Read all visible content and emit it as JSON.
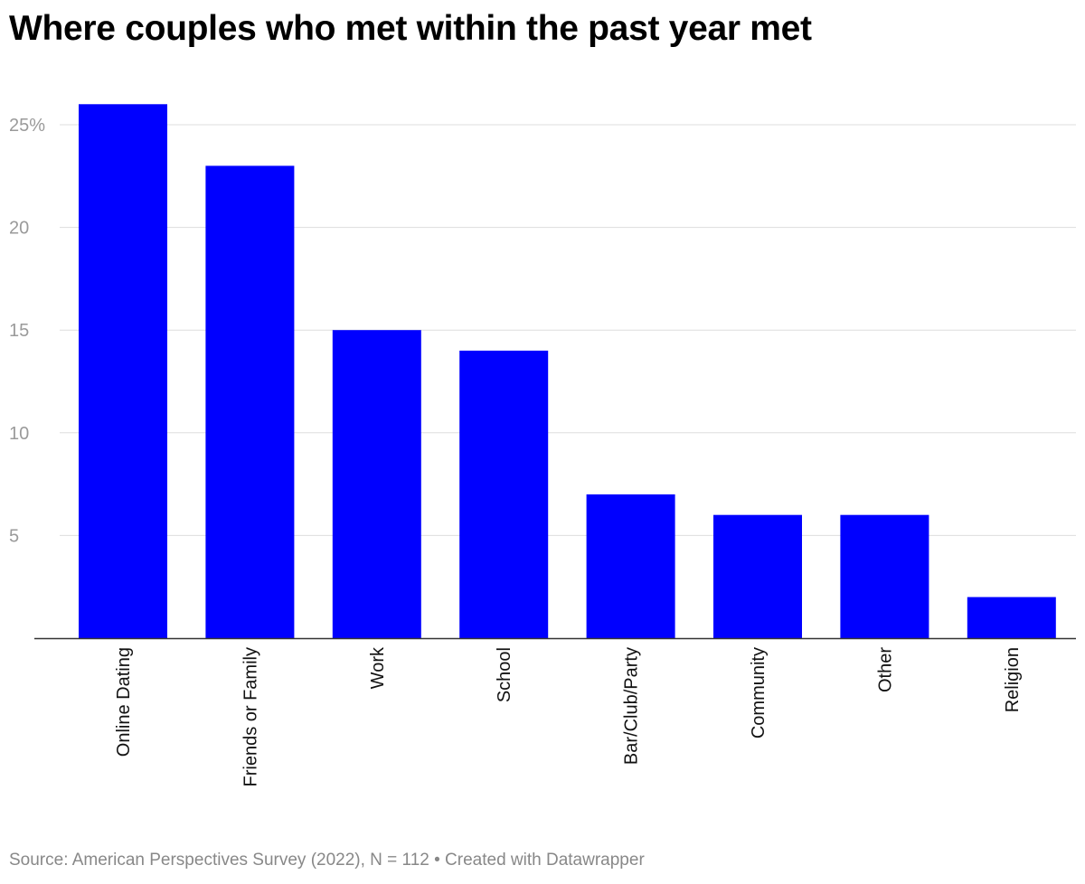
{
  "chart_data": {
    "type": "bar",
    "title": "Where couples who met within the past year met",
    "categories": [
      "Online Dating",
      "Friends or Family",
      "Work",
      "School",
      "Bar/Club/Party",
      "Community",
      "Other",
      "Religion"
    ],
    "values": [
      26,
      23,
      15,
      14,
      7,
      6,
      6,
      2
    ],
    "yticks": [
      "25%",
      "20",
      "15",
      "10",
      "5"
    ],
    "ytick_values": [
      25,
      20,
      15,
      10,
      5
    ],
    "ylim": [
      0,
      27.3
    ],
    "grid": true,
    "bar_color": "#0000ff"
  },
  "footer": {
    "source": "Source: American Perspectives Survey (2022), N = 112 • Created with Datawrapper"
  }
}
